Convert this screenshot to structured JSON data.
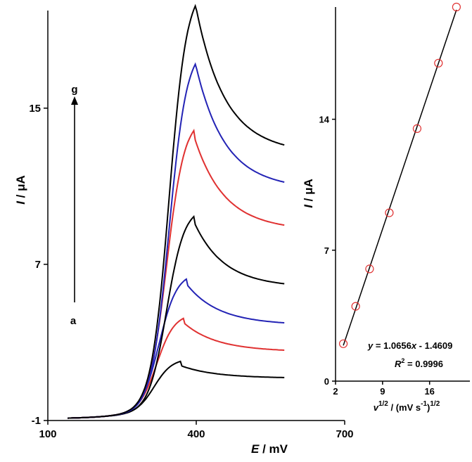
{
  "chart_data": [
    {
      "type": "line",
      "xlabel": {
        "var": "E",
        "unit": " / mV"
      },
      "ylabel": {
        "var": "I",
        "unit": " / μA"
      },
      "xlim": [
        100,
        700
      ],
      "ylim": [
        -1,
        20
      ],
      "xticks": [
        100,
        400,
        700
      ],
      "yticks": [
        -1,
        7,
        15
      ],
      "annotation": {
        "top": "g",
        "bottom": "a"
      },
      "colors": [
        "#000000",
        "#e03131",
        "#2323b5",
        "#000000",
        "#e03131",
        "#2323b5",
        "#000000"
      ],
      "series": [
        {
          "peak_x": 370,
          "peak_y": 1.8,
          "end_y": 1.2
        },
        {
          "peak_x": 375,
          "peak_y": 4.0,
          "end_y": 2.6
        },
        {
          "peak_x": 380,
          "peak_y": 6.0,
          "end_y": 4.0
        },
        {
          "peak_x": 395,
          "peak_y": 9.2,
          "end_y": 6.0
        },
        {
          "peak_x": 395,
          "peak_y": 13.6,
          "end_y": 9.0
        },
        {
          "peak_x": 400,
          "peak_y": 17.1,
          "end_y": 11.2
        },
        {
          "peak_x": 400,
          "peak_y": 20.1,
          "end_y": 13.1
        }
      ]
    },
    {
      "type": "scatter",
      "xlabel": "v1/2 / (mV s-1)1/2",
      "ylabel": {
        "var": "I",
        "unit": " / μA"
      },
      "xlim": [
        2,
        22
      ],
      "ylim": [
        0,
        20
      ],
      "xticks": [
        2,
        9,
        16
      ],
      "yticks": [
        0,
        7,
        14
      ],
      "x": [
        3.16,
        5.0,
        7.07,
        10.0,
        14.14,
        17.32,
        20.0
      ],
      "y": [
        2.0,
        4.0,
        6.0,
        9.0,
        13.5,
        17.0,
        20.0
      ],
      "fit": {
        "slope": 1.0656,
        "intercept": -1.4609,
        "x_range": [
          3.16,
          20.0
        ]
      },
      "equation": {
        "lhs": "y",
        "eq": " = 1.0656",
        "x": "x",
        "rest": " - 1.4609"
      },
      "r2": {
        "r": "R",
        "exp": "2",
        "value": " = 0.9996"
      },
      "marker_color": "#e03131"
    }
  ]
}
